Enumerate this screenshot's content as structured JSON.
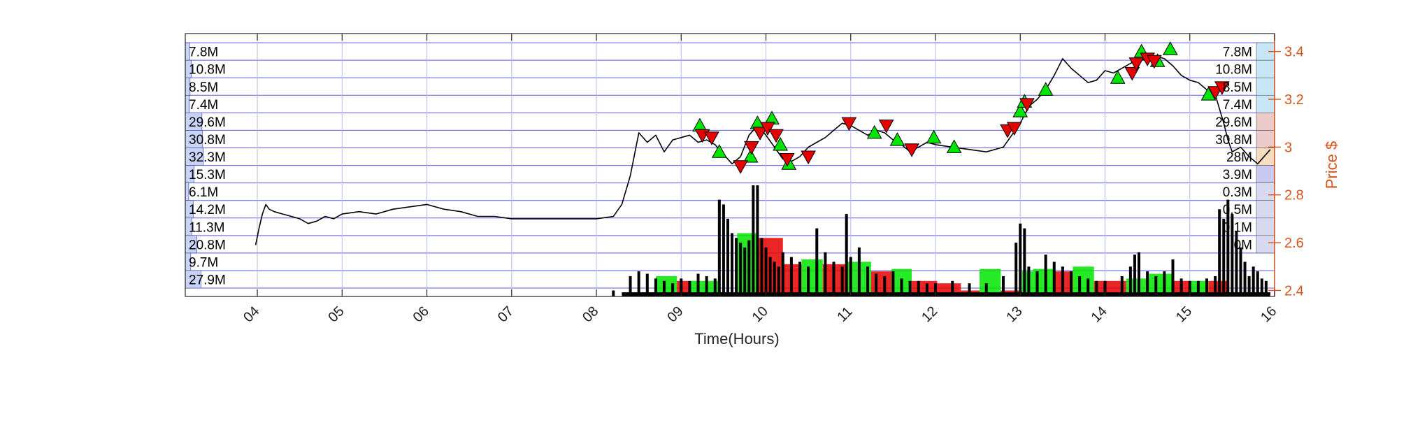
{
  "chart_data": {
    "type": "line",
    "xlabel": "Time(Hours)",
    "ylabel": "Price $",
    "xlim": [
      3.15,
      16.0
    ],
    "ylim": [
      2.375,
      3.475
    ],
    "x_ticks": [
      "04",
      "05",
      "06",
      "07",
      "08",
      "09",
      "10",
      "11",
      "12",
      "13",
      "14",
      "15",
      "16"
    ],
    "y_ticks": [
      2.4,
      2.6,
      2.8,
      3.0,
      3.2,
      3.4
    ],
    "y_tick_labels": [
      "2.4",
      "2.6",
      "2.8",
      "3",
      "3.2",
      "3.4"
    ],
    "grid": true,
    "colors": {
      "price": "#000000",
      "accent": "#d95319",
      "grid": "#b8b8f0",
      "profile_line": "#5a5ae6",
      "buy": "#00e600",
      "sell": "#e60000",
      "volume": "#000000"
    },
    "price_series": {
      "name": "Price",
      "x": [
        3.98,
        4.02,
        4.06,
        4.1,
        4.14,
        4.2,
        4.3,
        4.4,
        4.5,
        4.6,
        4.7,
        4.8,
        4.9,
        5.0,
        5.2,
        5.4,
        5.6,
        5.8,
        6.0,
        6.2,
        6.4,
        6.6,
        6.8,
        7.0,
        7.2,
        7.4,
        7.6,
        7.8,
        8.0,
        8.2,
        8.3,
        8.4,
        8.5,
        8.6,
        8.7,
        8.8,
        8.9,
        9.0,
        9.1,
        9.2,
        9.3,
        9.4,
        9.5,
        9.6,
        9.7,
        9.8,
        9.9,
        10.0,
        10.1,
        10.2,
        10.3,
        10.4,
        10.5,
        10.6,
        10.7,
        10.8,
        10.9,
        11.0,
        11.1,
        11.2,
        11.3,
        11.4,
        11.5,
        11.6,
        11.7,
        11.8,
        11.9,
        12.0,
        12.2,
        12.4,
        12.6,
        12.8,
        12.9,
        13.0,
        13.1,
        13.2,
        13.3,
        13.4,
        13.5,
        13.6,
        13.7,
        13.8,
        13.9,
        14.0,
        14.1,
        14.2,
        14.3,
        14.4,
        14.5,
        14.6,
        14.7,
        14.8,
        14.9,
        15.0,
        15.1,
        15.2,
        15.3,
        15.4,
        15.45,
        15.5,
        15.6,
        15.7,
        15.8,
        15.9,
        15.95
      ],
      "y": [
        2.59,
        2.66,
        2.72,
        2.76,
        2.74,
        2.73,
        2.72,
        2.71,
        2.7,
        2.68,
        2.69,
        2.71,
        2.7,
        2.72,
        2.73,
        2.72,
        2.74,
        2.75,
        2.76,
        2.74,
        2.73,
        2.71,
        2.71,
        2.7,
        2.7,
        2.7,
        2.7,
        2.7,
        2.7,
        2.71,
        2.76,
        2.88,
        3.06,
        3.02,
        3.05,
        2.98,
        3.03,
        3.04,
        3.05,
        3.02,
        3.03,
        3.01,
        2.97,
        2.93,
        2.96,
        3.05,
        3.09,
        3.05,
        3.0,
        2.95,
        2.94,
        2.96,
        3.0,
        3.02,
        3.04,
        3.07,
        3.1,
        3.09,
        3.07,
        3.05,
        3.07,
        3.06,
        3.03,
        3.01,
        2.98,
        3.0,
        3.02,
        3.01,
        3.0,
        2.99,
        2.98,
        3.0,
        3.05,
        3.1,
        3.17,
        3.2,
        3.24,
        3.3,
        3.37,
        3.33,
        3.3,
        3.27,
        3.28,
        3.32,
        3.31,
        3.33,
        3.35,
        3.37,
        3.36,
        3.38,
        3.37,
        3.34,
        3.3,
        3.28,
        3.27,
        3.24,
        3.22,
        3.1,
        3.03,
        2.98,
        3.0,
        2.96,
        2.93,
        2.97,
        2.99
      ]
    },
    "buy_signals": {
      "name": "Buy",
      "x": [
        9.22,
        9.45,
        9.82,
        9.9,
        10.07,
        10.17,
        10.27,
        11.28,
        11.55,
        11.98,
        12.22,
        13.0,
        13.05,
        13.3,
        14.15,
        14.43,
        14.62,
        14.77,
        15.22
      ],
      "y": [
        3.09,
        2.98,
        2.96,
        3.1,
        3.12,
        3.01,
        2.93,
        3.06,
        3.03,
        3.04,
        3.0,
        3.15,
        3.19,
        3.24,
        3.29,
        3.4,
        3.36,
        3.41,
        3.22
      ]
    },
    "sell_signals": {
      "name": "Sell",
      "x": [
        9.25,
        9.36,
        9.7,
        9.83,
        9.93,
        10.02,
        10.12,
        10.25,
        10.5,
        10.98,
        11.42,
        11.72,
        12.85,
        12.93,
        13.08,
        14.32,
        14.37,
        14.5,
        14.58,
        15.3,
        15.38
      ],
      "y": [
        3.05,
        3.04,
        2.92,
        3.0,
        3.06,
        3.08,
        3.05,
        2.95,
        2.96,
        3.1,
        3.09,
        2.99,
        3.07,
        3.08,
        3.18,
        3.31,
        3.35,
        3.37,
        3.36,
        3.23,
        3.25
      ]
    },
    "volume_bars": {
      "name": "Volume",
      "x": [
        8.2,
        8.4,
        8.5,
        8.6,
        8.7,
        8.8,
        8.9,
        9.0,
        9.1,
        9.2,
        9.3,
        9.4,
        9.45,
        9.5,
        9.55,
        9.6,
        9.65,
        9.7,
        9.75,
        9.8,
        9.85,
        9.9,
        9.95,
        10.0,
        10.05,
        10.1,
        10.15,
        10.2,
        10.3,
        10.4,
        10.5,
        10.6,
        10.7,
        10.8,
        10.9,
        10.95,
        11.0,
        11.1,
        11.2,
        11.3,
        11.4,
        11.5,
        11.6,
        11.7,
        11.8,
        11.9,
        12.0,
        12.2,
        12.4,
        12.6,
        12.8,
        12.95,
        13.0,
        13.05,
        13.1,
        13.2,
        13.3,
        13.4,
        13.5,
        13.6,
        13.7,
        13.8,
        13.9,
        14.0,
        14.2,
        14.3,
        14.35,
        14.4,
        14.5,
        14.6,
        14.7,
        14.8,
        14.9,
        15.0,
        15.1,
        15.2,
        15.3,
        15.35,
        15.4,
        15.45,
        15.5,
        15.55,
        15.6,
        15.65,
        15.7,
        15.75,
        15.8,
        15.85,
        15.9
      ],
      "y": [
        2.4,
        2.46,
        2.48,
        2.47,
        2.45,
        2.44,
        2.43,
        2.45,
        2.44,
        2.47,
        2.46,
        2.45,
        2.78,
        2.76,
        2.7,
        2.64,
        2.62,
        2.6,
        2.58,
        2.61,
        2.84,
        2.84,
        2.62,
        2.58,
        2.54,
        2.52,
        2.5,
        2.56,
        2.54,
        2.52,
        2.5,
        2.66,
        2.56,
        2.52,
        2.5,
        2.72,
        2.54,
        2.58,
        2.5,
        2.47,
        2.46,
        2.48,
        2.45,
        2.44,
        2.44,
        2.43,
        2.43,
        2.44,
        2.43,
        2.43,
        2.46,
        2.6,
        2.68,
        2.66,
        2.5,
        2.48,
        2.55,
        2.52,
        2.5,
        2.48,
        2.46,
        2.45,
        2.44,
        2.44,
        2.46,
        2.5,
        2.55,
        2.56,
        2.48,
        2.46,
        2.48,
        2.53,
        2.45,
        2.44,
        2.44,
        2.45,
        2.46,
        2.74,
        2.7,
        2.78,
        2.72,
        2.65,
        2.58,
        2.52,
        2.46,
        2.5,
        2.48,
        2.45,
        2.44
      ]
    },
    "signal_volume_blocks": [
      {
        "x0": 8.7,
        "x1": 8.95,
        "top": 2.46,
        "color": "#00e600"
      },
      {
        "x0": 8.95,
        "x1": 9.1,
        "top": 2.44,
        "color": "#e60000"
      },
      {
        "x0": 9.1,
        "x1": 9.45,
        "top": 2.44,
        "color": "#00e600"
      },
      {
        "x0": 9.66,
        "x1": 9.9,
        "top": 2.64,
        "color": "#00e600"
      },
      {
        "x0": 9.9,
        "x1": 10.2,
        "top": 2.62,
        "color": "#e60000"
      },
      {
        "x0": 10.2,
        "x1": 10.42,
        "top": 2.51,
        "color": "#e60000"
      },
      {
        "x0": 10.42,
        "x1": 10.67,
        "top": 2.53,
        "color": "#00e600"
      },
      {
        "x0": 10.67,
        "x1": 10.95,
        "top": 2.51,
        "color": "#e60000"
      },
      {
        "x0": 10.95,
        "x1": 11.24,
        "top": 2.52,
        "color": "#00e600"
      },
      {
        "x0": 11.24,
        "x1": 11.48,
        "top": 2.48,
        "color": "#e60000"
      },
      {
        "x0": 11.48,
        "x1": 11.72,
        "top": 2.49,
        "color": "#00e600"
      },
      {
        "x0": 11.72,
        "x1": 12.02,
        "top": 2.44,
        "color": "#e60000"
      },
      {
        "x0": 12.02,
        "x1": 12.3,
        "top": 2.43,
        "color": "#e60000"
      },
      {
        "x0": 12.3,
        "x1": 12.52,
        "top": 2.4,
        "color": "#e60000"
      },
      {
        "x0": 12.52,
        "x1": 12.77,
        "top": 2.49,
        "color": "#00e600"
      },
      {
        "x0": 12.77,
        "x1": 13.02,
        "top": 2.4,
        "color": "#e60000"
      },
      {
        "x0": 13.02,
        "x1": 13.15,
        "top": 2.48,
        "color": "#00e600"
      },
      {
        "x0": 13.15,
        "x1": 13.4,
        "top": 2.49,
        "color": "#00e600"
      },
      {
        "x0": 13.4,
        "x1": 13.62,
        "top": 2.48,
        "color": "#e60000"
      },
      {
        "x0": 13.62,
        "x1": 13.87,
        "top": 2.5,
        "color": "#00e600"
      },
      {
        "x0": 13.87,
        "x1": 14.25,
        "top": 2.44,
        "color": "#e60000"
      },
      {
        "x0": 14.25,
        "x1": 14.52,
        "top": 2.45,
        "color": "#00e600"
      },
      {
        "x0": 14.52,
        "x1": 14.8,
        "top": 2.47,
        "color": "#00e600"
      },
      {
        "x0": 14.8,
        "x1": 15.0,
        "top": 2.44,
        "color": "#e60000"
      },
      {
        "x0": 15.0,
        "x1": 15.22,
        "top": 2.44,
        "color": "#00e600"
      },
      {
        "x0": 15.22,
        "x1": 15.45,
        "top": 2.44,
        "color": "#e60000"
      }
    ],
    "volume_profile_left": {
      "labels": [
        "7.8M",
        "10.8M",
        "8.5M",
        "7.4M",
        "29.6M",
        "30.8M",
        "32.3M",
        "15.3M",
        "6.1M",
        "14.2M",
        "11.3M",
        "20.8M",
        "9.7M",
        "27.9M"
      ],
      "values": [
        7.8,
        10.8,
        8.5,
        7.4,
        29.6,
        30.8,
        32.3,
        15.3,
        6.1,
        14.2,
        11.3,
        20.8,
        9.7,
        27.9
      ],
      "color": "#c8d4f5"
    },
    "volume_profile_right": {
      "labels": [
        "7.8M",
        "10.8M",
        "8.5M",
        "7.4M",
        "29.6M",
        "30.8M",
        "28M",
        "3.9M",
        "0.3M",
        "0.5M",
        "0.1M",
        "0M"
      ],
      "values": [
        7.8,
        10.8,
        8.5,
        7.4,
        29.6,
        30.8,
        28.0,
        3.9,
        0.3,
        0.5,
        0.1,
        0.0
      ],
      "colors": [
        "#c8e6f8",
        "#c8e6f8",
        "#c8e6f8",
        "#c8e6f8",
        "#ebcaca",
        "#ebcaca",
        "#f8dcc0",
        "#c8c8f0",
        "#d8d8f0",
        "#d8d8f0",
        "#d8d8f0",
        "#d8d8f0"
      ]
    },
    "level_bands": [
      3.4367,
      3.3633,
      3.29,
      3.2167,
      3.1433,
      3.07,
      2.9967,
      2.9233,
      2.85,
      2.7767,
      2.7033,
      2.63,
      2.5567,
      2.4833,
      2.41
    ]
  }
}
